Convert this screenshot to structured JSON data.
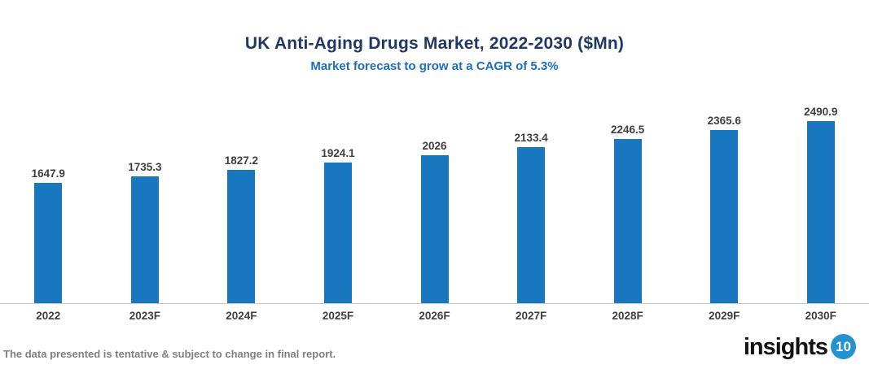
{
  "header": {
    "title": "UK Anti-Aging Drugs Market, 2022-2030 ($Mn)",
    "subtitle": "Market forecast to grow at a CAGR of 5.3%"
  },
  "chart_data": {
    "type": "bar",
    "categories": [
      "2022",
      "2023F",
      "2024F",
      "2025F",
      "2026F",
      "2027F",
      "2028F",
      "2029F",
      "2030F"
    ],
    "values": [
      1647.9,
      1735.3,
      1827.2,
      1924.1,
      2026,
      2133.4,
      2246.5,
      2365.6,
      2490.9
    ],
    "title": "UK Anti-Aging Drugs Market, 2022-2030 ($Mn)",
    "subtitle": "Market forecast to grow at a CAGR of 5.3%",
    "xlabel": "",
    "ylabel": "",
    "ylim": [
      0,
      2600
    ],
    "grid": false,
    "legend": false,
    "data_labels": true,
    "axis_ticks_visible": false
  },
  "footer": {
    "note": "The data presented is tentative & subject to change in final report.",
    "logo_text": "insights",
    "logo_badge": "10"
  },
  "colors": {
    "bar": "#1877BE",
    "title": "#203864",
    "subtitle": "#1B6EC2",
    "label": "#3F3F3F",
    "footer_note": "#808080",
    "axis_line": "#C8C8C8",
    "logo_badge_bg": "#2292D0"
  }
}
